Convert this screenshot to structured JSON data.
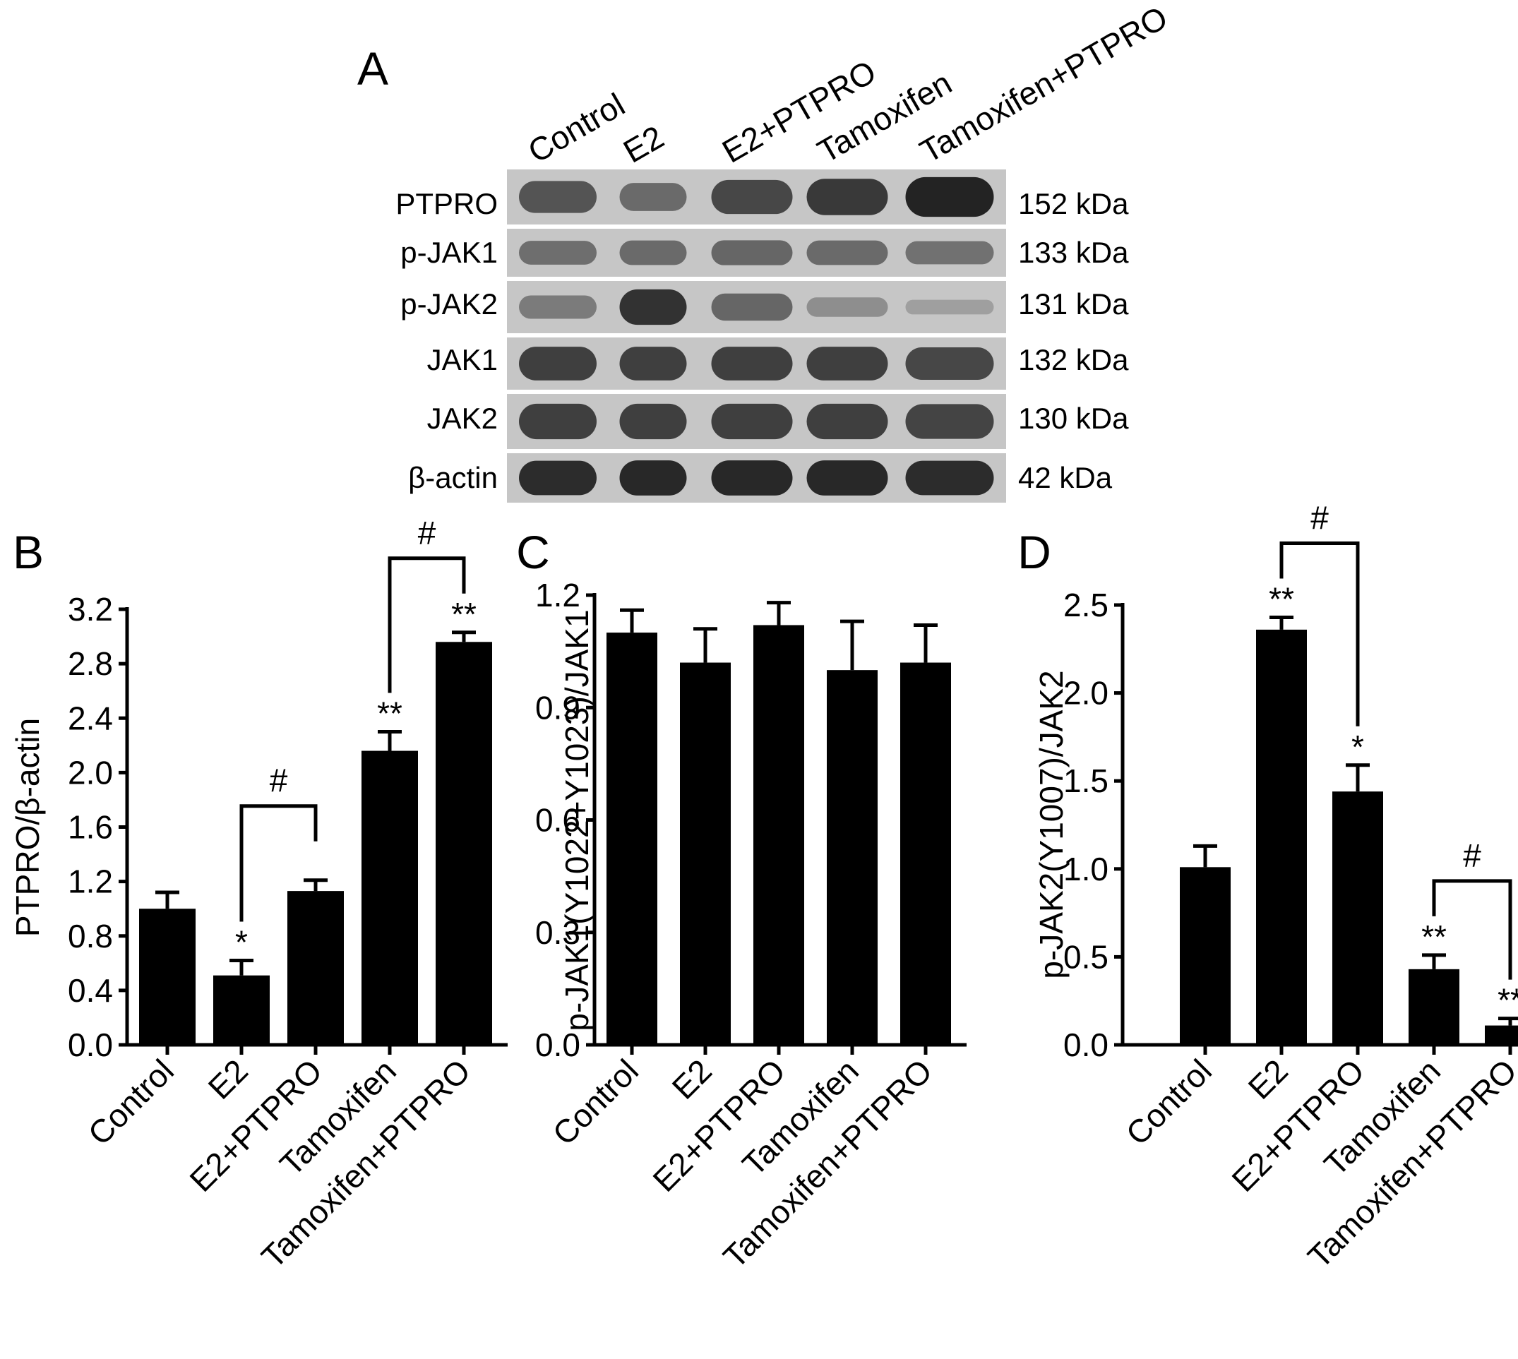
{
  "blot": {
    "panel_letter": "A",
    "lanes": [
      "Control",
      "E2",
      "E2+PTPRO",
      "Tamoxifen",
      "Tamoxifen+PTPRO"
    ],
    "rows": [
      {
        "label": "PTPRO",
        "size": "152 kDa",
        "intensity": [
          0.72,
          0.58,
          0.8,
          0.88,
          1.0
        ]
      },
      {
        "label": "p-JAK1",
        "size": "133 kDa",
        "intensity": [
          0.55,
          0.58,
          0.6,
          0.58,
          0.52
        ]
      },
      {
        "label": "p-JAK2",
        "size": "131 kDa",
        "intensity": [
          0.45,
          0.92,
          0.6,
          0.3,
          0.12
        ]
      },
      {
        "label": "JAK1",
        "size": "132 kDa",
        "intensity": [
          0.85,
          0.85,
          0.85,
          0.85,
          0.8
        ]
      },
      {
        "label": "JAK2",
        "size": "130 kDa",
        "intensity": [
          0.85,
          0.85,
          0.85,
          0.85,
          0.82
        ]
      },
      {
        "label": "β-actin",
        "size": "42 kDa",
        "intensity": [
          0.95,
          0.98,
          0.98,
          0.98,
          0.95
        ]
      }
    ]
  },
  "chart_data": [
    {
      "panel_letter": "B",
      "type": "bar",
      "categories": [
        "Control",
        "E2",
        "E2+PTPRO",
        "Tamoxifen",
        "Tamoxifen+PTPRO"
      ],
      "values": [
        1.0,
        0.51,
        1.13,
        2.16,
        2.96
      ],
      "errors": [
        0.12,
        0.11,
        0.08,
        0.14,
        0.07
      ],
      "ylabel": "PTPRO/β-actin",
      "ylim": [
        0.0,
        3.2
      ],
      "yticks": [
        "0.0",
        "0.4",
        "0.8",
        "1.2",
        "1.6",
        "2.0",
        "2.4",
        "2.8",
        "3.2"
      ],
      "significance": [
        "",
        "*",
        "",
        "**",
        "**"
      ],
      "brackets": [
        {
          "from": 1,
          "to": 2,
          "label": "#"
        },
        {
          "from": 3,
          "to": 4,
          "label": "#"
        }
      ]
    },
    {
      "panel_letter": "C",
      "type": "bar",
      "categories": [
        "Control",
        "E2",
        "E2+PTPRO",
        "Tamoxifen",
        "Tamoxifen+PTPRO"
      ],
      "values": [
        1.1,
        1.02,
        1.12,
        1.0,
        1.02
      ],
      "errors": [
        0.06,
        0.09,
        0.06,
        0.13,
        0.1
      ],
      "ylabel": "p-JAK1(Y1022+Y1023)/JAK1",
      "ylim": [
        0.0,
        1.2
      ],
      "yticks": [
        "0.0",
        "0.3",
        "0.6",
        "0.9",
        "1.2"
      ],
      "significance": [
        "",
        "",
        "",
        "",
        ""
      ],
      "brackets": []
    },
    {
      "panel_letter": "D",
      "type": "bar",
      "categories": [
        "Control",
        "E2",
        "E2+PTPRO",
        "Tamoxifen",
        "Tamoxifen+PTPRO"
      ],
      "values": [
        1.01,
        2.36,
        1.44,
        0.43,
        0.11
      ],
      "errors": [
        0.12,
        0.07,
        0.15,
        0.08,
        0.04
      ],
      "ylabel": "p-JAK2(Y1007)/JAK2",
      "ylim": [
        0.0,
        2.5
      ],
      "yticks": [
        "0.0",
        "0.5",
        "1.0",
        "1.5",
        "2.0",
        "2.5"
      ],
      "significance": [
        "",
        "**",
        "*",
        "**",
        "**"
      ],
      "brackets": [
        {
          "from": 1,
          "to": 2,
          "label": "#"
        },
        {
          "from": 3,
          "to": 4,
          "label": "#"
        }
      ]
    }
  ]
}
